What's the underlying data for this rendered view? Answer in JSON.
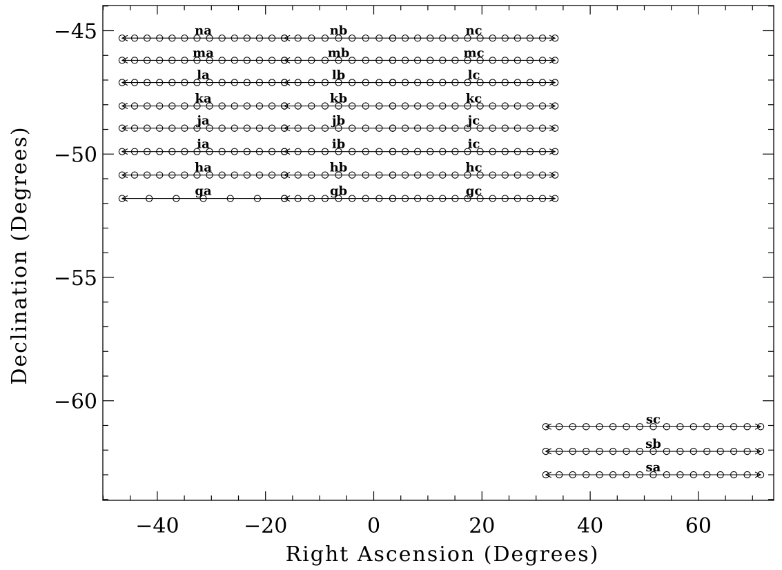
{
  "chart_data": {
    "type": "scatter",
    "xlabel": "Right Ascension (Degrees)",
    "ylabel": "Declination (Degrees)",
    "xlim": [
      -50,
      72.5
    ],
    "ylim": [
      -64,
      -44
    ],
    "x_major_ticks": [
      -40,
      -20,
      0,
      20,
      40,
      60
    ],
    "x_tick_labels": [
      "−40",
      "−20",
      "0",
      "20",
      "40",
      "60"
    ],
    "x_minor_step": 5,
    "y_major_ticks": [
      -45,
      -50,
      -55,
      -60
    ],
    "y_tick_labels": [
      "−45",
      "−50",
      "−55",
      "−60"
    ],
    "y_minor_step": 1,
    "grid": false,
    "strips": [
      {
        "name": "na",
        "dec": -45.3,
        "ra_start": -46.5,
        "ra_end": -16.5,
        "points": 14,
        "direction": "left"
      },
      {
        "name": "nb",
        "dec": -45.3,
        "ra_start": -16.5,
        "ra_end": 3.5,
        "points": 9,
        "direction": "left"
      },
      {
        "name": "nc",
        "dec": -45.3,
        "ra_start": 3.5,
        "ra_end": 33.5,
        "points": 14,
        "direction": "right"
      },
      {
        "name": "ma",
        "dec": -46.2,
        "ra_start": -46.5,
        "ra_end": -16.5,
        "points": 14,
        "direction": "left"
      },
      {
        "name": "mb",
        "dec": -46.2,
        "ra_start": -16.5,
        "ra_end": 3.5,
        "points": 9,
        "direction": "left"
      },
      {
        "name": "mc",
        "dec": -46.2,
        "ra_start": 3.5,
        "ra_end": 33.5,
        "points": 14,
        "direction": "right"
      },
      {
        "name": "la",
        "dec": -47.1,
        "ra_start": -46.5,
        "ra_end": -16.5,
        "points": 14,
        "direction": "left"
      },
      {
        "name": "lb",
        "dec": -47.1,
        "ra_start": -16.5,
        "ra_end": 3.5,
        "points": 9,
        "direction": "left"
      },
      {
        "name": "lc",
        "dec": -47.1,
        "ra_start": 3.5,
        "ra_end": 33.5,
        "points": 14,
        "direction": "right"
      },
      {
        "name": "ka",
        "dec": -48.05,
        "ra_start": -46.5,
        "ra_end": -16.5,
        "points": 14,
        "direction": "left"
      },
      {
        "name": "kb",
        "dec": -48.05,
        "ra_start": -16.5,
        "ra_end": 3.5,
        "points": 9,
        "direction": "left"
      },
      {
        "name": "kc",
        "dec": -48.05,
        "ra_start": 3.5,
        "ra_end": 33.5,
        "points": 14,
        "direction": "right"
      },
      {
        "name": "ja",
        "dec": -48.95,
        "ra_start": -46.5,
        "ra_end": -16.5,
        "points": 14,
        "direction": "left"
      },
      {
        "name": "jb",
        "dec": -48.95,
        "ra_start": -16.5,
        "ra_end": 3.5,
        "points": 9,
        "direction": "left"
      },
      {
        "name": "jc",
        "dec": -48.95,
        "ra_start": 3.5,
        "ra_end": 33.5,
        "points": 14,
        "direction": "right"
      },
      {
        "name": "ia",
        "dec": -49.9,
        "ra_start": -46.5,
        "ra_end": -16.5,
        "points": 14,
        "direction": "left"
      },
      {
        "name": "ib",
        "dec": -49.9,
        "ra_start": -16.5,
        "ra_end": 3.5,
        "points": 9,
        "direction": "left"
      },
      {
        "name": "ic",
        "dec": -49.9,
        "ra_start": 3.5,
        "ra_end": 33.5,
        "points": 14,
        "direction": "right"
      },
      {
        "name": "ha",
        "dec": -50.85,
        "ra_start": -46.5,
        "ra_end": -16.5,
        "points": 14,
        "direction": "left"
      },
      {
        "name": "hb",
        "dec": -50.85,
        "ra_start": -16.5,
        "ra_end": 3.5,
        "points": 9,
        "direction": "left"
      },
      {
        "name": "hc",
        "dec": -50.85,
        "ra_start": 3.5,
        "ra_end": 33.5,
        "points": 14,
        "direction": "right"
      },
      {
        "name": "ga",
        "dec": -51.8,
        "ra_start": -46.5,
        "ra_end": -16.5,
        "points": 7,
        "direction": "left"
      },
      {
        "name": "gb",
        "dec": -51.8,
        "ra_start": -16.5,
        "ra_end": 3.5,
        "points": 9,
        "direction": "left"
      },
      {
        "name": "gc",
        "dec": -51.8,
        "ra_start": 3.5,
        "ra_end": 33.5,
        "points": 14,
        "direction": "right"
      },
      {
        "name": "sc",
        "dec": -61.05,
        "ra_start": 31.8,
        "ra_end": 71.5,
        "points": 17,
        "direction": "both"
      },
      {
        "name": "sb",
        "dec": -62.05,
        "ra_start": 31.8,
        "ra_end": 71.5,
        "points": 17,
        "direction": "both"
      },
      {
        "name": "sa",
        "dec": -63.0,
        "ra_start": 31.8,
        "ra_end": 71.5,
        "points": 17,
        "direction": "both"
      }
    ]
  }
}
